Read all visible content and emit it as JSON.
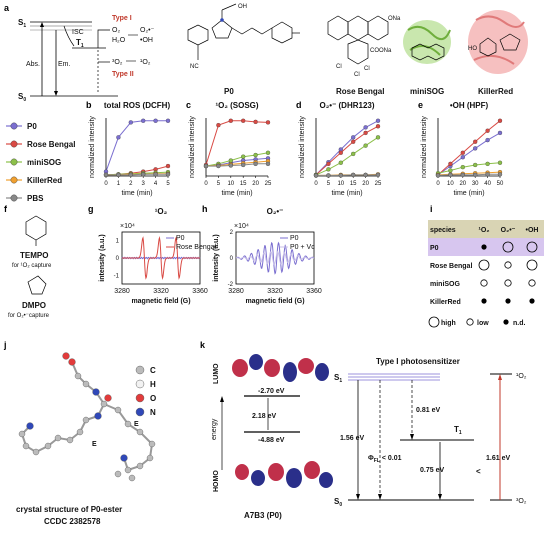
{
  "panels": {
    "a": "a",
    "b": "b",
    "c": "c",
    "d": "d",
    "e": "e",
    "f": "f",
    "g": "g",
    "h": "h",
    "i": "i",
    "j": "j",
    "k": "k"
  },
  "jablonski": {
    "s1": "S",
    "s1_sub": "1",
    "s0": "S",
    "s0_sub": "0",
    "t1": "T",
    "t1_sub": "1",
    "abs": "Abs.",
    "em": "Em.",
    "isc": "ISC",
    "type1_label": "Type I",
    "type2_label": "Type II",
    "type1_reactants": "O₂",
    "type1_water": "H₂O",
    "type1_products": "O₂•⁻",
    "type1_oh": "•OH",
    "type2_reactant": "³O₂",
    "type2_product": "¹O₂"
  },
  "molecules": [
    "P0",
    "Rose Bengal",
    "miniSOG",
    "KillerRed"
  ],
  "chem_labels": {
    "nc": "NC",
    "oh": "OH",
    "ho": "HO",
    "cl": "Cl",
    "ona": "ONa",
    "coona": "COONa"
  },
  "legend": {
    "items": [
      {
        "name": "P0",
        "color": "#7b6fd0"
      },
      {
        "name": "Rose Bengal",
        "color": "#d94a44"
      },
      {
        "name": "miniSOG",
        "color": "#8cc04a"
      },
      {
        "name": "KillerRed",
        "color": "#f0a030"
      },
      {
        "name": "PBS",
        "color": "#888888"
      }
    ]
  },
  "chart_data": [
    {
      "panel": "b",
      "type": "line",
      "title": "total ROS (DCFH)",
      "xlabel": "time (min)",
      "ylabel": "normalized intensity",
      "x": [
        0,
        1,
        2,
        3,
        4,
        5
      ],
      "xlim": [
        0,
        5
      ],
      "ylim": [
        0,
        1.05
      ],
      "xticks": [
        "0",
        "1",
        "2",
        "3",
        "4",
        "5"
      ],
      "series": [
        {
          "name": "P0",
          "color": "#7b6fd0",
          "values": [
            0.08,
            0.7,
            0.97,
            1.0,
            1.0,
            1.0
          ]
        },
        {
          "name": "Rose Bengal",
          "color": "#d94a44",
          "values": [
            0.02,
            0.03,
            0.05,
            0.08,
            0.12,
            0.18
          ]
        },
        {
          "name": "miniSOG",
          "color": "#8cc04a",
          "values": [
            0.02,
            0.03,
            0.04,
            0.05,
            0.06,
            0.07
          ]
        },
        {
          "name": "KillerRed",
          "color": "#f0a030",
          "values": [
            0.02,
            0.02,
            0.03,
            0.03,
            0.04,
            0.04
          ]
        },
        {
          "name": "PBS",
          "color": "#888888",
          "values": [
            0.02,
            0.02,
            0.02,
            0.03,
            0.03,
            0.03
          ]
        }
      ]
    },
    {
      "panel": "c",
      "type": "line",
      "title": "¹O₂ (SOSG)",
      "xlabel": "time (min)",
      "ylabel": "normalized intensity",
      "x": [
        0,
        5,
        10,
        15,
        20,
        25
      ],
      "xlim": [
        0,
        25
      ],
      "ylim": [
        0,
        1.05
      ],
      "xticks": [
        "0",
        "5",
        "10",
        "15",
        "20",
        "25"
      ],
      "series": [
        {
          "name": "P0",
          "color": "#7b6fd0",
          "values": [
            0.18,
            0.2,
            0.24,
            0.28,
            0.3,
            0.32
          ]
        },
        {
          "name": "Rose Bengal",
          "color": "#d94a44",
          "values": [
            0.2,
            0.92,
            1.0,
            1.0,
            0.98,
            0.97
          ]
        },
        {
          "name": "miniSOG",
          "color": "#8cc04a",
          "values": [
            0.18,
            0.22,
            0.28,
            0.35,
            0.38,
            0.42
          ]
        },
        {
          "name": "KillerRed",
          "color": "#f0a030",
          "values": [
            0.18,
            0.19,
            0.21,
            0.23,
            0.25,
            0.27
          ]
        },
        {
          "name": "PBS",
          "color": "#888888",
          "values": [
            0.18,
            0.18,
            0.19,
            0.2,
            0.22,
            0.22
          ]
        }
      ]
    },
    {
      "panel": "d",
      "type": "line",
      "title": "O₂•⁻ (DHR123)",
      "xlabel": "time (min)",
      "ylabel": "normalized intensity",
      "x": [
        0,
        5,
        10,
        15,
        20,
        25
      ],
      "xlim": [
        0,
        25
      ],
      "ylim": [
        0,
        1.05
      ],
      "xticks": [
        "0",
        "5",
        "10",
        "15",
        "20",
        "25"
      ],
      "series": [
        {
          "name": "P0",
          "color": "#7b6fd0",
          "values": [
            0.02,
            0.25,
            0.48,
            0.7,
            0.88,
            1.0
          ]
        },
        {
          "name": "Rose Bengal",
          "color": "#d94a44",
          "values": [
            0.02,
            0.22,
            0.42,
            0.62,
            0.78,
            0.9
          ]
        },
        {
          "name": "miniSOG",
          "color": "#8cc04a",
          "values": [
            0.02,
            0.12,
            0.24,
            0.4,
            0.55,
            0.7
          ]
        },
        {
          "name": "KillerRed",
          "color": "#f0a030",
          "values": [
            0.01,
            0.01,
            0.02,
            0.02,
            0.02,
            0.03
          ]
        },
        {
          "name": "PBS",
          "color": "#888888",
          "values": [
            0.01,
            0.01,
            0.01,
            0.02,
            0.02,
            0.02
          ]
        }
      ]
    },
    {
      "panel": "e",
      "type": "line",
      "title": "•OH (HPF)",
      "xlabel": "time (min)",
      "ylabel": "normalized intensity",
      "x": [
        0,
        10,
        20,
        30,
        40,
        50
      ],
      "xlim": [
        0,
        50
      ],
      "ylim": [
        0,
        1.05
      ],
      "xticks": [
        "0",
        "10",
        "20",
        "30",
        "40",
        "50"
      ],
      "series": [
        {
          "name": "P0",
          "color": "#7b6fd0",
          "values": [
            0.02,
            0.18,
            0.34,
            0.5,
            0.65,
            0.78
          ]
        },
        {
          "name": "Rose Bengal",
          "color": "#d94a44",
          "values": [
            0.02,
            0.22,
            0.42,
            0.62,
            0.82,
            1.0
          ]
        },
        {
          "name": "miniSOG",
          "color": "#8cc04a",
          "values": [
            0.05,
            0.1,
            0.16,
            0.2,
            0.22,
            0.24
          ]
        },
        {
          "name": "KillerRed",
          "color": "#f0a030",
          "values": [
            0.02,
            0.03,
            0.04,
            0.05,
            0.06,
            0.07
          ]
        },
        {
          "name": "PBS",
          "color": "#888888",
          "values": [
            0.01,
            0.02,
            0.02,
            0.02,
            0.03,
            0.03
          ]
        }
      ]
    },
    {
      "panel": "g",
      "type": "line",
      "title": "¹O₂",
      "xlabel": "magnetic field (G)",
      "ylabel": "intensity (a.u.)",
      "scale_note": "×10⁴",
      "xlim": [
        3280,
        3360
      ],
      "ylim": [
        -1.5,
        1.5
      ],
      "xticks": [
        "3280",
        "3320",
        "3360"
      ],
      "yticks": [
        "1",
        "0",
        "-1"
      ],
      "legend": [
        "P0",
        "Rose Bengal"
      ],
      "series": [
        {
          "name": "P0",
          "color": "#7b6fd0",
          "shape": "flat"
        },
        {
          "name": "Rose Bengal",
          "color": "#d94a44",
          "shape": "triplet",
          "lines": [
            {
              "center": 3303,
              "amp": 1.2
            },
            {
              "center": 3320,
              "amp": 1.2
            },
            {
              "center": 3337,
              "amp": 1.2
            }
          ]
        }
      ]
    },
    {
      "panel": "h",
      "type": "line",
      "title": "O₂•⁻",
      "xlabel": "magnetic field (G)",
      "ylabel": "intensity (a.u.)",
      "scale_note": "×10⁴",
      "xlim": [
        3280,
        3360
      ],
      "ylim": [
        -2,
        2
      ],
      "xticks": [
        "3280",
        "3320",
        "3360"
      ],
      "yticks": [
        "2",
        "0",
        "-2"
      ],
      "legend": [
        "P0",
        "P0 + Vc"
      ],
      "series": [
        {
          "name": "P0",
          "color": "#7b6fd0",
          "shape": "multiplet"
        },
        {
          "name": "P0 + Vc",
          "color": "#c8bfe8",
          "shape": "multiplet-weak"
        }
      ]
    }
  ],
  "spin_traps": [
    {
      "name": "TEMPO",
      "caption": "for ¹O₂ capture"
    },
    {
      "name": "DMPO",
      "caption": "for O₂•⁻capture"
    }
  ],
  "table_i": {
    "headers": [
      "species",
      "¹O₂",
      "O₂•⁻",
      "•OH"
    ],
    "rows": [
      {
        "name": "P0",
        "marks": [
          "nd",
          "high",
          "high"
        ]
      },
      {
        "name": "Rose Bengal",
        "marks": [
          "high",
          "low",
          "high"
        ]
      },
      {
        "name": "miniSOG",
        "marks": [
          "low",
          "low",
          "low"
        ]
      },
      {
        "name": "KillerRed",
        "marks": [
          "nd",
          "nd",
          "nd"
        ]
      }
    ],
    "key": [
      {
        "mark": "high",
        "label": "high"
      },
      {
        "mark": "low",
        "label": "low"
      },
      {
        "mark": "nd",
        "label": "n.d."
      }
    ],
    "header_color": "#d9d4b4",
    "highlight_color": "#d7c6ef"
  },
  "crystal": {
    "caption": "crystal structure of P0-ester",
    "ccdc": "CCDC 2382578",
    "legend": [
      {
        "el": "C",
        "color": "#bbbbbb"
      },
      {
        "el": "H",
        "color": "#f2f2f2"
      },
      {
        "el": "O",
        "color": "#e23b3b"
      },
      {
        "el": "N",
        "color": "#3048b8"
      }
    ],
    "e_label": "E"
  },
  "orbitals": {
    "lumo": "LUMO",
    "homo": "HOMO",
    "energy_axis": "energy",
    "lumo_energy": "-2.70 eV",
    "gap": "2.18 eV",
    "homo_energy": "-4.88 eV",
    "molecule": "A7B3 (P0)"
  },
  "energy_diagram": {
    "title": "Type I photosensitizer",
    "s1": "S",
    "s1_sub": "1",
    "s0": "S",
    "s0_sub": "0",
    "t1": "T",
    "t1_sub": "1",
    "s1_energy": "1.56 eV",
    "isc_gap": "0.81 eV",
    "t1_energy": "0.75 eV",
    "fl_qy": "Φ",
    "fl_sub": "FL",
    "fl_value": "< 0.01",
    "compare": "<",
    "o2_energy": "1.61 eV",
    "singlet_o2": "¹O₂",
    "triplet_o2": "³O₂"
  }
}
